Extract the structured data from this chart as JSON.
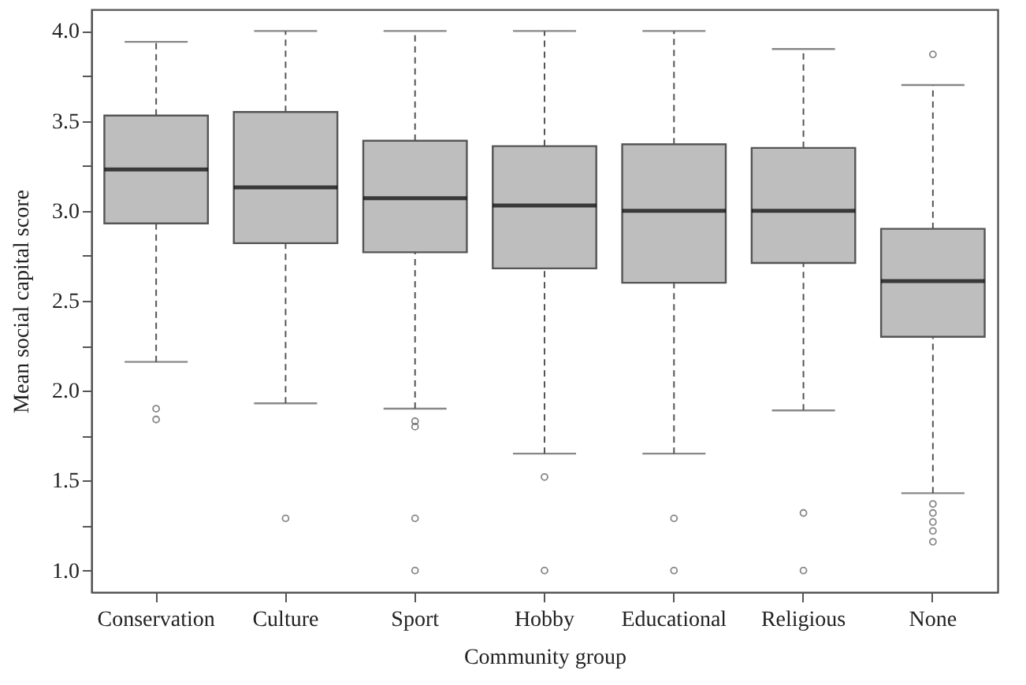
{
  "chart_data": {
    "type": "box",
    "xlabel": "Community group",
    "ylabel": "Mean social capital score",
    "categories": [
      "Conservation",
      "Culture",
      "Sport",
      "Hobby",
      "Educational",
      "Religious",
      "None"
    ],
    "ylim": [
      0.88,
      4.12
    ],
    "yticks": [
      {
        "value": 1,
        "label": "1.0"
      },
      {
        "value": 1.25,
        "label": null
      },
      {
        "value": 1.5,
        "label": "1.5"
      },
      {
        "value": 1.75,
        "label": null
      },
      {
        "value": 2,
        "label": "2.0"
      },
      {
        "value": 2.25,
        "label": null
      },
      {
        "value": 2.5,
        "label": "2.5"
      },
      {
        "value": 2.75,
        "label": null
      },
      {
        "value": 3,
        "label": "3.0"
      },
      {
        "value": 3.25,
        "label": null
      },
      {
        "value": 3.5,
        "label": "3.5"
      },
      {
        "value": 3.75,
        "label": null
      },
      {
        "value": 4,
        "label": "4.0"
      }
    ],
    "grid": false,
    "series": [
      {
        "color": "#bebebe",
        "boxes": [
          {
            "low": 2.16,
            "q1": 2.93,
            "median": 3.23,
            "q3": 3.53,
            "high": 3.94,
            "outliers": [
              1.9,
              1.84
            ]
          },
          {
            "low": 1.93,
            "q1": 2.82,
            "median": 3.13,
            "q3": 3.55,
            "high": 4.0,
            "outliers": [
              1.29
            ]
          },
          {
            "low": 1.9,
            "q1": 2.77,
            "median": 3.07,
            "q3": 3.39,
            "high": 4.0,
            "outliers": [
              1.83,
              1.8,
              1.29,
              1.0
            ]
          },
          {
            "low": 1.65,
            "q1": 2.68,
            "median": 3.03,
            "q3": 3.36,
            "high": 4.0,
            "outliers": [
              1.52,
              1.0
            ]
          },
          {
            "low": 1.65,
            "q1": 2.6,
            "median": 3.0,
            "q3": 3.37,
            "high": 4.0,
            "outliers": [
              1.29,
              1.0
            ]
          },
          {
            "low": 1.89,
            "q1": 2.71,
            "median": 3.0,
            "q3": 3.35,
            "high": 3.9,
            "outliers": [
              1.32,
              1.0
            ]
          },
          {
            "low": 1.43,
            "q1": 2.3,
            "median": 2.61,
            "q3": 2.9,
            "high": 3.7,
            "outliers": [
              3.87,
              1.37,
              1.32,
              1.27,
              1.22,
              1.16
            ]
          }
        ]
      }
    ]
  }
}
